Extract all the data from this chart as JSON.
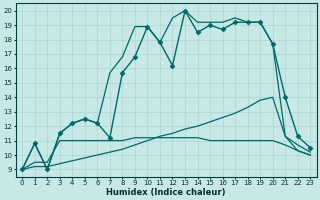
{
  "xlabel": "Humidex (Indice chaleur)",
  "bg_color": "#c8e8e8",
  "grid_color": "#b0d8d0",
  "line_color": "#006868",
  "xlim": [
    -0.5,
    23.5
  ],
  "ylim": [
    8.5,
    20.5
  ],
  "xticks": [
    0,
    1,
    2,
    3,
    4,
    5,
    6,
    7,
    8,
    9,
    10,
    11,
    12,
    13,
    14,
    15,
    16,
    17,
    18,
    19,
    20,
    21,
    22,
    23
  ],
  "yticks": [
    9,
    10,
    11,
    12,
    13,
    14,
    15,
    16,
    17,
    18,
    19,
    20
  ],
  "series": [
    {
      "x": [
        0,
        1,
        2,
        3,
        4,
        5,
        6,
        7,
        8,
        9,
        10,
        11,
        12,
        13,
        14,
        15,
        16,
        17,
        18,
        19,
        20,
        21,
        22,
        23
      ],
      "y": [
        9,
        10.8,
        9.0,
        11.5,
        12.2,
        12.5,
        12.2,
        11.2,
        15.7,
        16.8,
        18.9,
        17.8,
        16.2,
        20.0,
        18.5,
        19.0,
        18.7,
        19.2,
        19.2,
        19.2,
        17.7,
        14.0,
        11.3,
        10.5
      ],
      "marker": "D",
      "markersize": 2.5,
      "linewidth": 1.0,
      "linestyle": "-"
    },
    {
      "x": [
        0,
        1,
        2,
        3,
        4,
        5,
        6,
        7,
        8,
        9,
        10,
        11,
        12,
        13,
        14,
        15,
        16,
        17,
        18,
        19,
        20,
        21,
        22,
        23
      ],
      "y": [
        9,
        10.8,
        9.0,
        11.5,
        12.2,
        12.5,
        12.2,
        15.7,
        16.8,
        18.9,
        18.9,
        17.8,
        19.5,
        20.0,
        19.2,
        19.2,
        19.2,
        19.5,
        19.2,
        19.2,
        17.7,
        11.3,
        10.7,
        10.2
      ],
      "marker": null,
      "markersize": 0,
      "linewidth": 0.9,
      "linestyle": "-"
    },
    {
      "x": [
        0,
        1,
        2,
        3,
        4,
        5,
        6,
        7,
        8,
        9,
        10,
        11,
        12,
        13,
        14,
        15,
        16,
        17,
        18,
        19,
        20,
        21,
        22,
        23
      ],
      "y": [
        9,
        9.5,
        9.5,
        11.0,
        11.0,
        11.0,
        11.0,
        11.0,
        11.0,
        11.2,
        11.2,
        11.2,
        11.2,
        11.2,
        11.2,
        11.0,
        11.0,
        11.0,
        11.0,
        11.0,
        11.0,
        10.7,
        10.3,
        10.0
      ],
      "marker": null,
      "markersize": 0,
      "linewidth": 0.9,
      "linestyle": "-"
    },
    {
      "x": [
        0,
        1,
        2,
        3,
        4,
        5,
        6,
        7,
        8,
        9,
        10,
        11,
        12,
        13,
        14,
        15,
        16,
        17,
        18,
        19,
        20,
        21,
        22,
        23
      ],
      "y": [
        9,
        9.2,
        9.2,
        9.4,
        9.6,
        9.8,
        10.0,
        10.2,
        10.4,
        10.7,
        11.0,
        11.3,
        11.5,
        11.8,
        12.0,
        12.3,
        12.6,
        12.9,
        13.3,
        13.8,
        14.0,
        11.3,
        10.3,
        10.0
      ],
      "marker": null,
      "markersize": 0,
      "linewidth": 0.9,
      "linestyle": "-"
    }
  ]
}
